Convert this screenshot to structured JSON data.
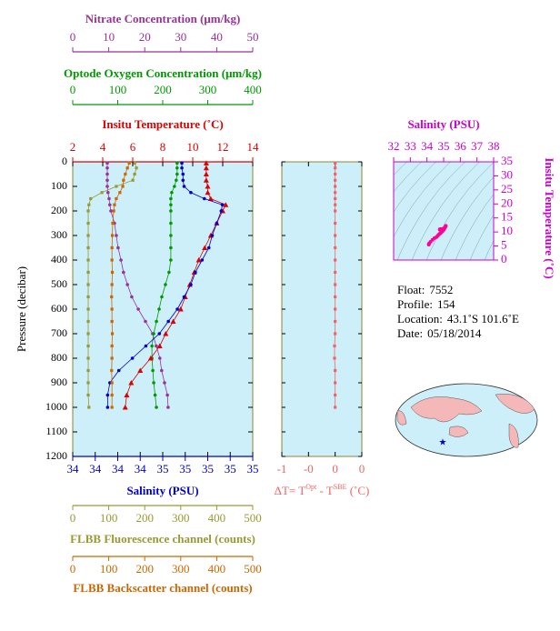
{
  "chart_data": [
    {
      "type": "profile",
      "ylabel": "Pressure (decibar)",
      "ylim": [
        0,
        1200
      ],
      "yticks": [
        0,
        100,
        200,
        300,
        400,
        500,
        600,
        700,
        800,
        900,
        1000,
        1100,
        1200
      ],
      "pressure": [
        5,
        25,
        50,
        75,
        100,
        125,
        150,
        175,
        200,
        250,
        300,
        350,
        400,
        450,
        500,
        550,
        600,
        650,
        700,
        750,
        800,
        850,
        900,
        950,
        1000
      ],
      "background": "#cdeff9",
      "axes": [
        {
          "title": "Nitrate Concentration (μm/kg)",
          "color": "#993399",
          "marker": "circle",
          "xlim": [
            0,
            50
          ],
          "xticks": [
            0,
            10,
            20,
            30,
            40,
            50
          ],
          "values": [
            9.6,
            9.6,
            9.6,
            9.6,
            9.6,
            9.8,
            10.1,
            10.3,
            10.6,
            11.6,
            12.1,
            12.6,
            13.4,
            14.1,
            15.2,
            16.4,
            18.2,
            20.2,
            22.2,
            23.2,
            24.2,
            24.7,
            25.5,
            26.3,
            26.5
          ]
        },
        {
          "title": "Optode Oxygen Concentration (μm/kg)",
          "color": "#009900",
          "marker": "circle",
          "xlim": [
            0,
            400
          ],
          "xticks": [
            0,
            100,
            200,
            300,
            400
          ],
          "values": [
            232,
            232,
            232,
            230,
            226,
            220,
            218,
            218,
            218,
            218,
            218,
            218,
            218,
            214,
            206,
            198,
            192,
            186,
            180,
            176,
            176,
            178,
            180,
            183,
            186
          ]
        },
        {
          "title": "Insitu Temperature (˚C)",
          "color": "#dd0000",
          "marker": "triangle",
          "xlim": [
            2,
            14
          ],
          "xticks": [
            2,
            4,
            6,
            8,
            10,
            12,
            14
          ],
          "values": [
            10.9,
            10.9,
            10.9,
            10.9,
            11.0,
            11.0,
            11.2,
            12.2,
            12.0,
            11.6,
            11.2,
            10.8,
            10.4,
            10.1,
            9.8,
            9.5,
            9.2,
            8.7,
            8.2,
            7.8,
            7.2,
            6.5,
            5.9,
            5.6,
            5.5
          ]
        },
        {
          "title": "Salinity (PSU)",
          "color": "#0000cc",
          "marker": "circle",
          "xlim": [
            33.8,
            35.4
          ],
          "xticks": [
            {
              "value": 33.8,
              "label": "34"
            },
            {
              "value": 34.0,
              "label": "34"
            },
            {
              "value": 34.2,
              "label": "34"
            },
            {
              "value": 34.4,
              "label": "34"
            },
            {
              "value": 34.6,
              "label": "35"
            },
            {
              "value": 34.8,
              "label": "35"
            },
            {
              "value": 35.0,
              "label": "35"
            },
            {
              "value": 35.2,
              "label": "35"
            },
            {
              "value": 35.4,
              "label": "35"
            }
          ],
          "values": [
            34.77,
            34.77,
            34.78,
            34.78,
            34.79,
            34.85,
            34.97,
            35.13,
            35.12,
            35.08,
            35.04,
            35.01,
            34.95,
            34.89,
            34.85,
            34.79,
            34.73,
            34.65,
            34.57,
            34.45,
            34.33,
            34.21,
            34.13,
            34.11,
            34.11
          ]
        },
        {
          "title": "FLBB Fluorescence channel (counts)",
          "color": "#999933",
          "marker": "square",
          "xlim": [
            0,
            500
          ],
          "xticks": [
            0,
            100,
            200,
            300,
            400,
            500
          ],
          "values": [
            172,
            177,
            172,
            167,
            121,
            81,
            50,
            45,
            43,
            43,
            43,
            43,
            43,
            43,
            43,
            43,
            43,
            43,
            43,
            43,
            43,
            43,
            43,
            43,
            45
          ]
        },
        {
          "title": "FLBB Backscatter channel (counts)",
          "color": "#cc6600",
          "marker": "square",
          "xlim": [
            0,
            500
          ],
          "xticks": [
            0,
            100,
            200,
            300,
            400,
            500
          ],
          "values": [
            157,
            152,
            146,
            141,
            139,
            131,
            121,
            116,
            114,
            111,
            110,
            109,
            109,
            110,
            109,
            108,
            109,
            109,
            110,
            109,
            109,
            108,
            109,
            109,
            109
          ]
        }
      ]
    },
    {
      "type": "profile",
      "xlabel_parts": [
        "ΔT= T",
        "Opt",
        " - T",
        "SBE",
        " (˚C)"
      ],
      "color": "#f06464",
      "background": "#cdeff9",
      "xlim": [
        -0.9,
        0.45
      ],
      "xticks": [
        {
          "value": -0.9,
          "label": "-1"
        },
        {
          "value": -0.45,
          "label": "-0"
        },
        {
          "value": 0,
          "label": "0"
        },
        {
          "value": 0.45,
          "label": "0"
        }
      ],
      "values": [
        0,
        0,
        0,
        0,
        0,
        0,
        0,
        0,
        0,
        0,
        0,
        0,
        0,
        0,
        0,
        0,
        0,
        0,
        0,
        -0.01,
        -0.01,
        0,
        0,
        0,
        0
      ]
    },
    {
      "type": "scatter",
      "title": "Salinity (PSU)",
      "ylabel": "Insitu Temperature (˚C)",
      "color": "#ff0099",
      "axis_color": "#cc00cc",
      "background": "#cdeff9",
      "xlim": [
        32,
        38
      ],
      "xticks": [
        32,
        33,
        34,
        35,
        36,
        37,
        38
      ],
      "ylim": [
        0,
        35
      ],
      "yticks": [
        0,
        5,
        10,
        15,
        20,
        25,
        30,
        35
      ]
    }
  ],
  "profile_info": [
    {
      "label": "Float:",
      "value": "7552"
    },
    {
      "label": "Profile:",
      "value": "154"
    },
    {
      "label": "Location:",
      "value": "43.1˚S  101.6˚E"
    },
    {
      "label": "Date:",
      "value": "05/18/2014"
    }
  ]
}
